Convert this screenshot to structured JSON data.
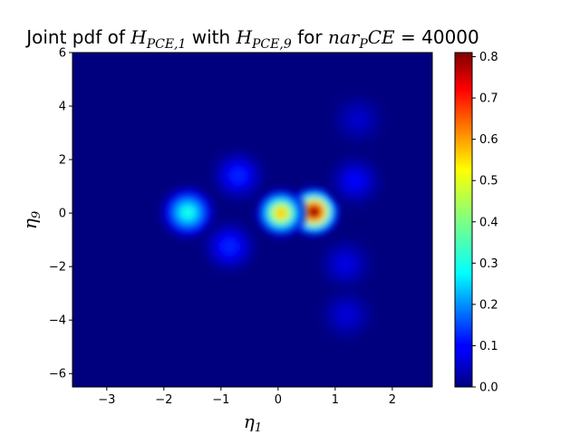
{
  "chart_data": {
    "type": "heatmap",
    "title": "Joint pdf of H_PCE,1 with H_PCE,9 for nar_PCE = 40000",
    "title_parts": {
      "t1": "Joint pdf of ",
      "t2": "H",
      "t3": "PCE,1",
      "t4": " with ",
      "t5": "H",
      "t6": "PCE,9",
      "t7": " for ",
      "t8": "nar",
      "t9": "P",
      "t10": "CE",
      "t11": " = 40000"
    },
    "xlabel": "η₁",
    "ylabel": "η₉",
    "xlabel_parts": {
      "sym": "η",
      "sub": "1"
    },
    "ylabel_parts": {
      "sym": "η",
      "sub": "9"
    },
    "xlim": [
      -3.6,
      2.7
    ],
    "ylim": [
      -6.5,
      6.0
    ],
    "xticks": [
      -3,
      -2,
      -1,
      0,
      1,
      2
    ],
    "yticks": [
      -6,
      -4,
      -2,
      0,
      2,
      4,
      6
    ],
    "xtick_labels": [
      "−3",
      "−2",
      "−1",
      "0",
      "1",
      "2"
    ],
    "ytick_labels": [
      "−6",
      "−4",
      "−2",
      "0",
      "2",
      "4",
      "6"
    ],
    "colorbar": {
      "colormap": "jet",
      "range": [
        0.0,
        0.81
      ],
      "ticks": [
        0.0,
        0.1,
        0.2,
        0.3,
        0.4,
        0.5,
        0.6,
        0.7,
        0.8
      ],
      "tick_labels": [
        "0.0",
        "0.1",
        "0.2",
        "0.3",
        "0.4",
        "0.5",
        "0.6",
        "0.7",
        "0.8"
      ]
    },
    "density_peaks": [
      {
        "x": 0.63,
        "y": 0.05,
        "peak": 0.81
      },
      {
        "x": 0.05,
        "y": 0.0,
        "peak": 0.55
      },
      {
        "x": -1.58,
        "y": 0.02,
        "peak": 0.32
      },
      {
        "x": -0.7,
        "y": 1.4,
        "peak": 0.13
      },
      {
        "x": -0.85,
        "y": -1.25,
        "peak": 0.13
      },
      {
        "x": 1.35,
        "y": 1.2,
        "peak": 0.1
      },
      {
        "x": 1.4,
        "y": 3.5,
        "peak": 0.06
      },
      {
        "x": 1.18,
        "y": -1.9,
        "peak": 0.08
      },
      {
        "x": 1.2,
        "y": -3.8,
        "peak": 0.07
      }
    ]
  }
}
